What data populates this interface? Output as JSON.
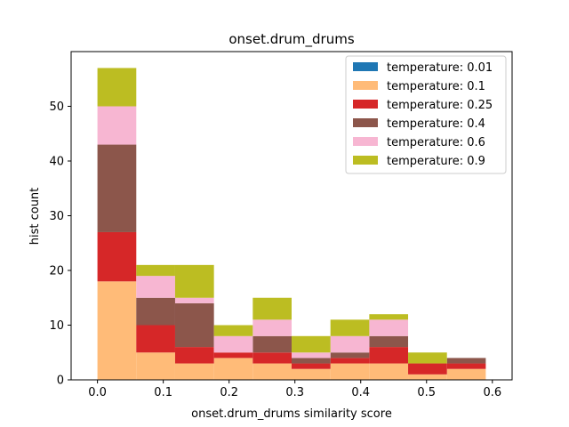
{
  "chart_data": {
    "type": "bar",
    "stacked": true,
    "title": "onset.drum_drums",
    "xlabel": "onset.drum_drums similarity score",
    "ylabel": "hist count",
    "xlim": [
      -0.04,
      0.63
    ],
    "ylim": [
      0,
      60
    ],
    "bin_edges": [
      0.0,
      0.059,
      0.118,
      0.177,
      0.236,
      0.295,
      0.354,
      0.413,
      0.472,
      0.531,
      0.59
    ],
    "x_ticks": [
      "0.0",
      "0.1",
      "0.2",
      "0.3",
      "0.4",
      "0.5",
      "0.6"
    ],
    "x_tick_values": [
      0.0,
      0.1,
      0.2,
      0.3,
      0.4,
      0.5,
      0.6
    ],
    "y_ticks": [
      "0",
      "10",
      "20",
      "30",
      "40",
      "50"
    ],
    "y_tick_values": [
      0,
      10,
      20,
      30,
      40,
      50
    ],
    "grid": false,
    "legend_position": "top-right",
    "series": [
      {
        "name": "temperature: 0.01",
        "color": "#1f77b4",
        "values": [
          0,
          0,
          0,
          0,
          0,
          0,
          0,
          0,
          0,
          0
        ]
      },
      {
        "name": "temperature: 0.1",
        "color": "#ffbb78",
        "values": [
          18,
          5,
          3,
          4,
          3,
          2,
          3,
          3,
          1,
          2
        ]
      },
      {
        "name": "temperature: 0.25",
        "color": "#d62728",
        "values": [
          9,
          5,
          3,
          1,
          2,
          1,
          1,
          3,
          2,
          1
        ]
      },
      {
        "name": "temperature: 0.4",
        "color": "#8c564b",
        "values": [
          16,
          5,
          8,
          0,
          3,
          1,
          1,
          2,
          0,
          1
        ]
      },
      {
        "name": "temperature: 0.6",
        "color": "#f7b6d2",
        "values": [
          7,
          4,
          1,
          3,
          3,
          1,
          3,
          3,
          0,
          0
        ]
      },
      {
        "name": "temperature: 0.9",
        "color": "#bcbd22",
        "values": [
          7,
          2,
          6,
          2,
          4,
          3,
          3,
          1,
          2,
          0
        ]
      }
    ]
  }
}
